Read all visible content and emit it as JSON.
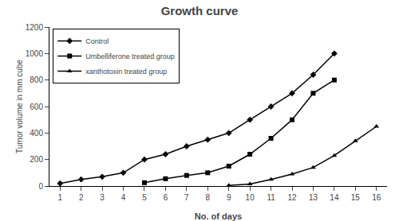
{
  "chart_data": {
    "type": "line",
    "title": "Growth curve",
    "x_label": "No. of days",
    "y_label": "Tumor volume in mm cube",
    "x": [
      1,
      2,
      3,
      4,
      5,
      6,
      7,
      8,
      9,
      10,
      11,
      12,
      13,
      14,
      15,
      16
    ],
    "series": [
      {
        "name": "Control",
        "color": "#000000",
        "marker": "diamond",
        "values": [
          20,
          50,
          70,
          100,
          200,
          240,
          300,
          350,
          400,
          500,
          600,
          700,
          840,
          1000,
          null,
          null
        ]
      },
      {
        "name": "Umbelliferone treated group",
        "color": "#000000",
        "marker": "square",
        "values": [
          null,
          null,
          null,
          null,
          25,
          55,
          80,
          100,
          150,
          240,
          360,
          500,
          700,
          800,
          null,
          null
        ]
      },
      {
        "name": "xanthotoxin treated group",
        "color": "#000000",
        "marker": "triangle-up",
        "values": [
          null,
          null,
          null,
          null,
          null,
          null,
          null,
          null,
          5,
          15,
          50,
          90,
          140,
          230,
          340,
          450
        ]
      }
    ],
    "xlim": [
      0.5,
      16.5
    ],
    "xticks": [
      1,
      2,
      3,
      4,
      5,
      6,
      7,
      8,
      9,
      10,
      11,
      12,
      13,
      14,
      15,
      16
    ],
    "ylim": [
      0,
      1200
    ],
    "yticks": [
      0,
      200,
      400,
      600,
      800,
      1000,
      1200
    ],
    "grid": false,
    "legend": "upper left"
  }
}
